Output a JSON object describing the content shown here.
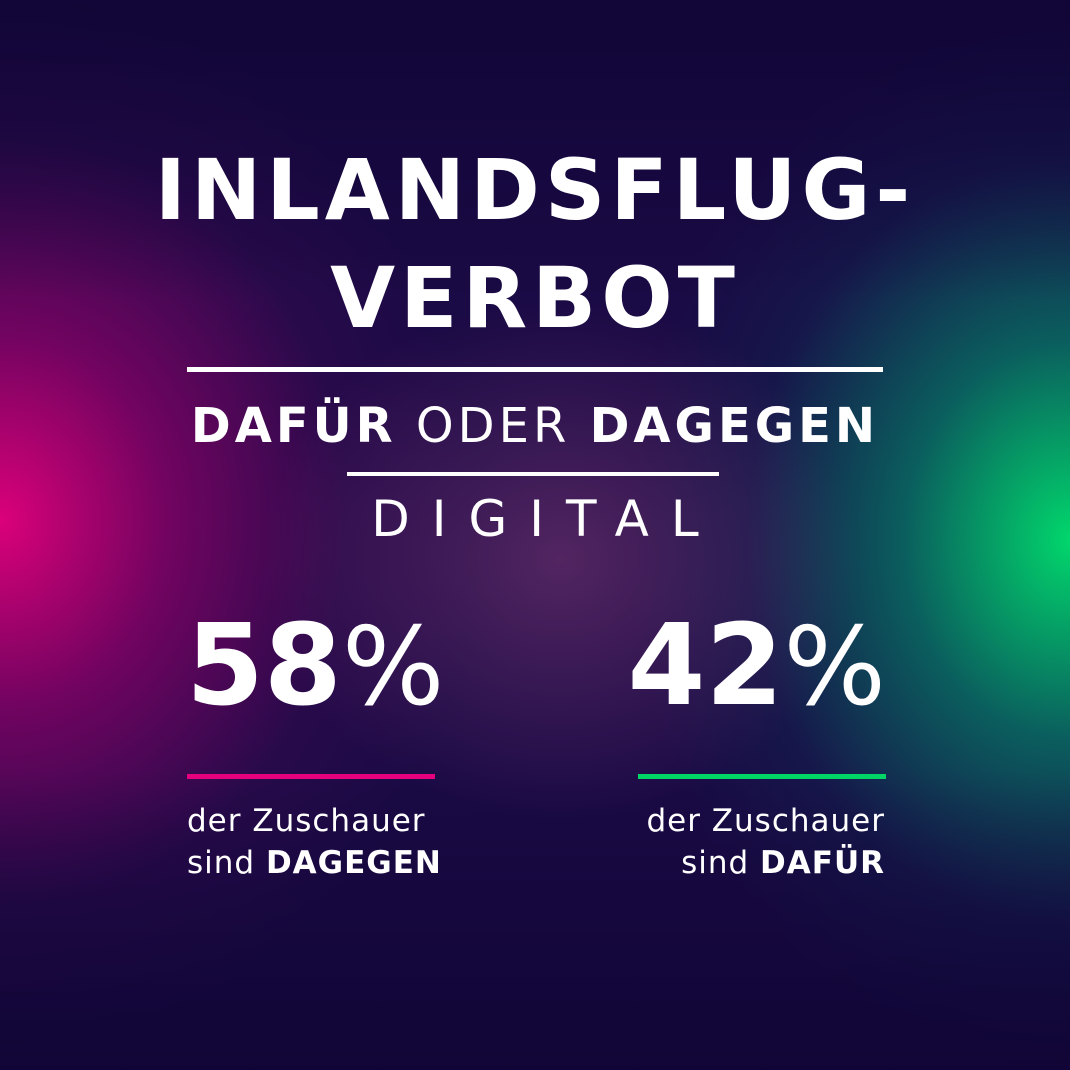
{
  "title": {
    "line1": "INLANDSFLUG-",
    "line2": "VERBOT"
  },
  "subtitle": {
    "pro": "DAFÜR",
    "connector": "ODER",
    "contra": "DAGEGEN"
  },
  "show_name": "DIGITAL",
  "results": {
    "against": {
      "value": "58",
      "unit": "%",
      "caption_line1": "der Zuschauer",
      "caption_prefix": "sind",
      "caption_emphasis": "DAGEGEN",
      "color": "#e6007e"
    },
    "for": {
      "value": "42",
      "unit": "%",
      "caption_line1": "der Zuschauer",
      "caption_prefix": "sind",
      "caption_emphasis": "DAFÜR",
      "color": "#00d665"
    }
  },
  "colors": {
    "background": "#1a0a45",
    "accent_left": "#e6007e",
    "accent_right": "#00d665",
    "text": "#ffffff"
  }
}
